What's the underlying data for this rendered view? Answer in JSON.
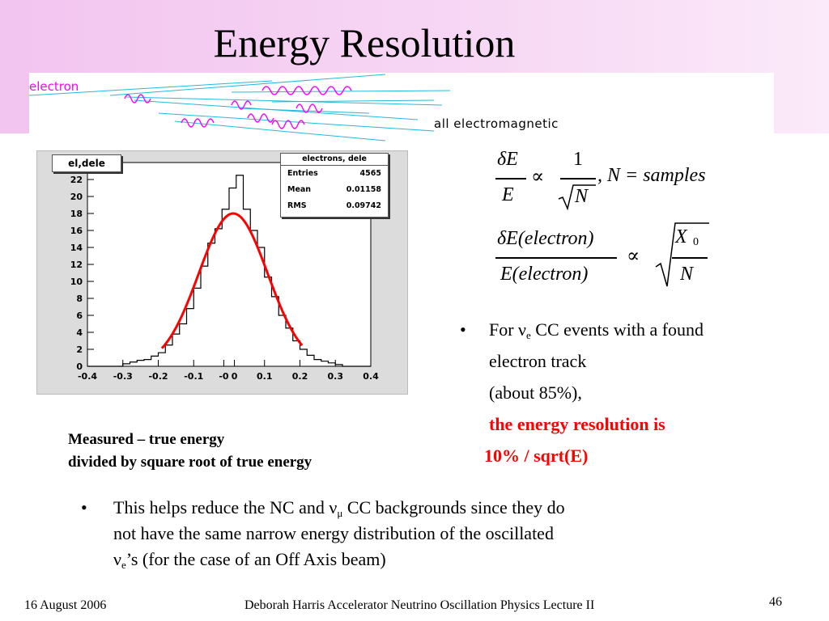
{
  "title": "Energy Resolution",
  "shower": {
    "left_label": "electron",
    "right_label": "all electromagnetic"
  },
  "histogram": {
    "tag": "el,dele",
    "stats": {
      "title": "electrons, dele",
      "rows": [
        {
          "label": "Entries",
          "value": "4565"
        },
        {
          "label": "Mean",
          "value": "0.01158"
        },
        {
          "label": "RMS",
          "value": "0.09742"
        }
      ]
    },
    "y_ticks": [
      "0",
      "2",
      "4",
      "6",
      "8",
      "10",
      "12",
      "14",
      "16",
      "18",
      "20",
      "22"
    ],
    "x_ticks": [
      "-0.4",
      "-0.3",
      "-0.2",
      "-0.1",
      "-0",
      "0",
      "0.1",
      "0.2",
      "0.3",
      "0.4"
    ]
  },
  "chart_data": {
    "type": "bar",
    "xlim": [
      -0.4,
      0.4
    ],
    "ylim": [
      0,
      24
    ],
    "bin_edges": [
      -0.4,
      -0.38,
      -0.36,
      -0.34,
      -0.32,
      -0.3,
      -0.28,
      -0.26,
      -0.24,
      -0.22,
      -0.2,
      -0.18,
      -0.16,
      -0.14,
      -0.12,
      -0.1,
      -0.08,
      -0.06,
      -0.04,
      -0.02,
      0,
      0.02,
      0.04,
      0.06,
      0.08,
      0.1,
      0.12,
      0.14,
      0.16,
      0.18,
      0.2,
      0.22,
      0.24,
      0.26,
      0.28,
      0.3,
      0.32,
      0.34,
      0.36,
      0.38,
      0.4
    ],
    "counts": [
      0,
      0,
      0,
      0,
      0,
      0.3,
      0.5,
      0.7,
      0.8,
      1.2,
      1.6,
      2.5,
      3.8,
      5.0,
      6.8,
      9.2,
      11.8,
      14.5,
      16.2,
      18.5,
      21.0,
      22.5,
      18.5,
      16.0,
      14.0,
      10.5,
      8.2,
      6.0,
      4.5,
      3.0,
      2.0,
      1.3,
      0.8,
      0.6,
      0.4,
      0.2,
      0,
      0,
      0,
      0
    ],
    "fit": {
      "type": "gaussian",
      "amplitude": 18,
      "mean": 0.01158,
      "sigma": 0.0974,
      "color": "#ff0000"
    }
  },
  "formula1": {
    "num": "δE",
    "den": "E",
    "prop": "∝",
    "one": "1",
    "rootN": "N",
    "tail": ", N = samples"
  },
  "formula2": {
    "num": "δE(electron)",
    "den": "E(electron)",
    "prop": "∝",
    "x": "X",
    "sub0": "0",
    "n": "N"
  },
  "bullet_right": {
    "dot": "•",
    "line1_pre": "For ν",
    "line1_sub": "e",
    "line1_post": " CC events with a found",
    "line2": "electron track",
    "line3": "(about 85%),",
    "red1": "the energy resolution is",
    "red2": "10% / sqrt(E)"
  },
  "caption": {
    "line1": "Measured – true energy",
    "line2": "divided by square root of true energy"
  },
  "bottom_bullet": {
    "dot": "•",
    "l1_pre": "This helps reduce the NC and ν",
    "l1_sub": "μ",
    "l1_post": " CC backgrounds since they do",
    "l2": "not have the same narrow energy distribution of the oscillated",
    "l3_pre": "ν",
    "l3_sub": "e",
    "l3_post": "’s  (for the case of an Off Axis beam)"
  },
  "footer": {
    "date": "16 August 2006",
    "center": "Deborah Harris  Accelerator Neutrino Oscillation Physics Lecture II",
    "page": "46"
  }
}
